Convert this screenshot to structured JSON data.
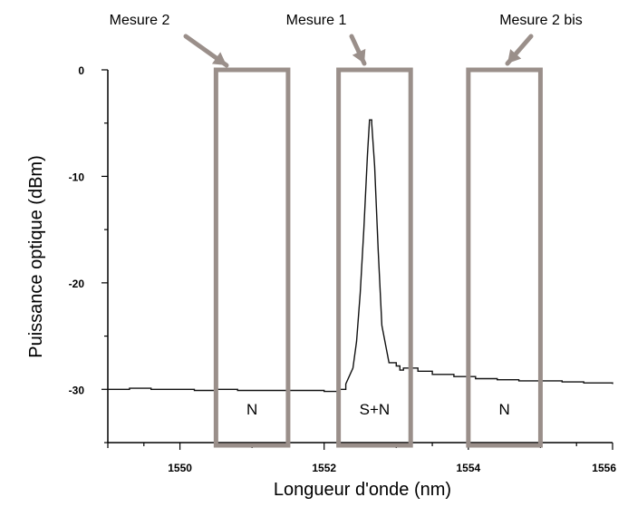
{
  "chart_data": {
    "type": "line",
    "xlabel": "Longueur d'onde (nm)",
    "ylabel": "Puissance optique (dBm)",
    "xlim": [
      1549,
      1556
    ],
    "ylim": [
      -35,
      0
    ],
    "xticks": [
      1550,
      1552,
      1554,
      1556
    ],
    "yticks": [
      0,
      -10,
      -20,
      -30
    ],
    "grid": false,
    "series": [
      {
        "color": "#111111",
        "x": [
          1549.0,
          1549.3,
          1549.6,
          1549.9,
          1550.2,
          1550.5,
          1550.8,
          1551.1,
          1551.4,
          1551.7,
          1552.0,
          1552.2,
          1552.3,
          1552.4,
          1552.45,
          1552.5,
          1552.55,
          1552.6,
          1552.63,
          1552.66,
          1552.7,
          1552.75,
          1552.8,
          1552.9,
          1553.0,
          1553.05,
          1553.1,
          1553.3,
          1553.5,
          1553.8,
          1554.1,
          1554.4,
          1554.7,
          1555.0,
          1555.3,
          1555.6,
          1556.0
        ],
        "y": [
          -30.0,
          -29.9,
          -30.0,
          -30.0,
          -30.1,
          -30.0,
          -30.1,
          -30.1,
          -30.1,
          -30.1,
          -30.2,
          -30.0,
          -29.5,
          -28.0,
          -25.5,
          -21.0,
          -15.0,
          -8.0,
          -4.7,
          -5.0,
          -9.0,
          -17.0,
          -24.0,
          -27.5,
          -27.8,
          -28.2,
          -28.0,
          -28.3,
          -28.6,
          -28.8,
          -29.0,
          -29.1,
          -29.2,
          -29.2,
          -29.3,
          -29.4,
          -29.5
        ]
      }
    ],
    "boxes": [
      {
        "label": "N",
        "x_range": [
          1550.5,
          1551.5
        ],
        "callout": "Mesure 2"
      },
      {
        "label": "S+N",
        "x_range": [
          1552.2,
          1553.2
        ],
        "callout": "Mesure 1"
      },
      {
        "label": "N",
        "x_range": [
          1554.0,
          1555.0
        ],
        "callout": "Mesure 2 bis"
      }
    ]
  },
  "colors": {
    "box": "#9a8f8a",
    "arrow": "#9a8f8a",
    "axis": "#000000",
    "trace": "#111111"
  }
}
